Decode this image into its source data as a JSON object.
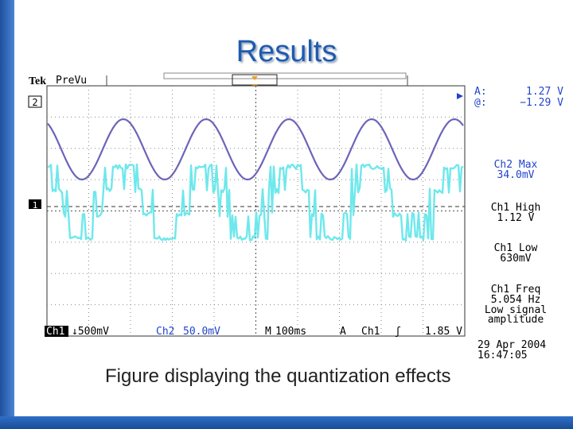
{
  "slide": {
    "title": "Results",
    "caption": "Figure displaying the quantization effects"
  },
  "scope": {
    "brand": "Tek",
    "mode": "PreVu",
    "ch2_marker": "2",
    "ch1_marker": "1",
    "cursor_a_label": "A:",
    "cursor_a_value": "1.27 V",
    "cursor_at_label": "@:",
    "cursor_at_value": "−1.29 V",
    "measurements": [
      {
        "label": "Ch2 Max",
        "value": "34.0mV"
      },
      {
        "label": "Ch1 High",
        "value": "1.12 V"
      },
      {
        "label": "Ch1 Low",
        "value": "630mV"
      }
    ],
    "freq_label": "Ch1 Freq",
    "freq_value": "5.054 Hz",
    "freq_note_1": "Low signal",
    "freq_note_2": "amplitude",
    "status_bar": {
      "ch1": "Ch1",
      "ch1_scale": "↓500mV",
      "ch2": "Ch2",
      "ch2_scale": "50.0mV",
      "m": "M",
      "timebase": "100ms",
      "a": "A",
      "trig_src": "Ch1",
      "trig_slope": "ʃ",
      "trig_level": "1.85 V"
    },
    "date": "29 Apr 2004",
    "time": "16:47:05",
    "colors": {
      "ch1_trace": "#6ee8ec",
      "ch2_trace": "#6c64b8",
      "readout_blue": "#2244cc",
      "grid": "#7a7a7a",
      "trigger_marker": "#e8a020"
    }
  }
}
